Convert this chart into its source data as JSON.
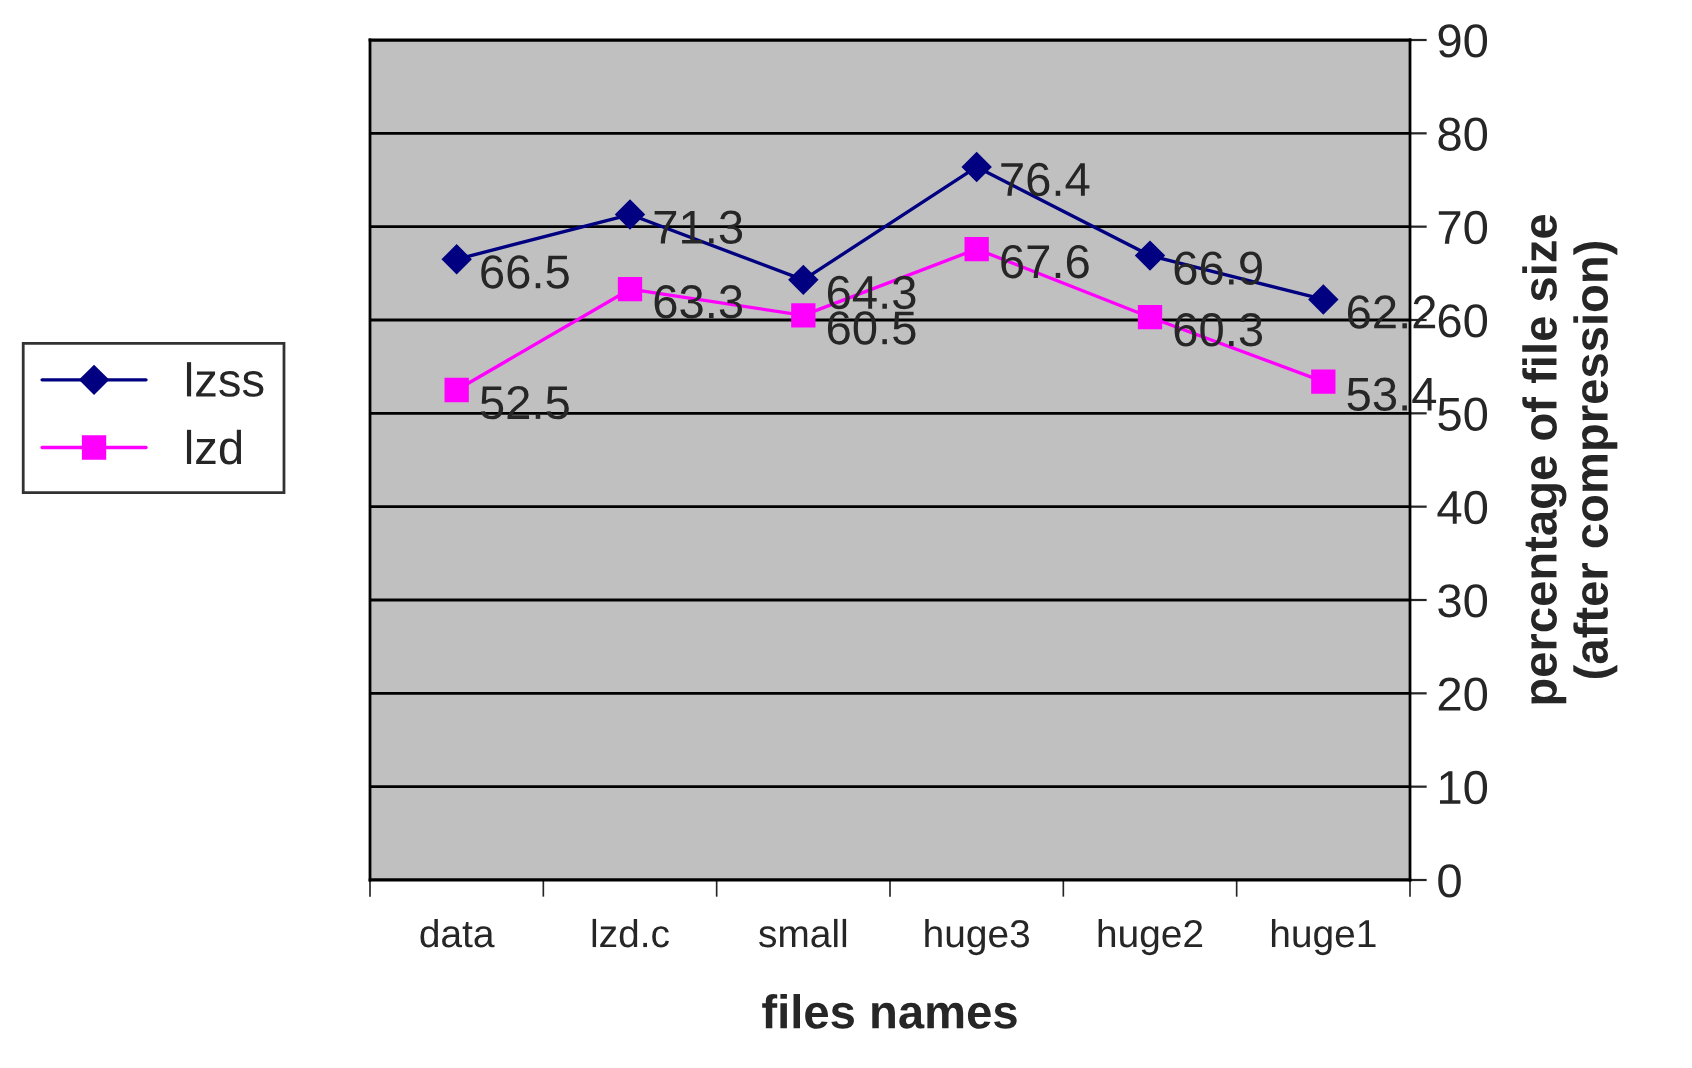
{
  "chart_data": {
    "type": "line",
    "xlabel": "files names",
    "ylabel": "percentage of file size\n(after compression)",
    "categories": [
      "data",
      "lzd.c",
      "small",
      "huge3",
      "huge2",
      "huge1"
    ],
    "series": [
      {
        "name": "lzss",
        "color": "#000080",
        "marker": "diamond",
        "values": [
          66.5,
          71.3,
          64.3,
          76.4,
          66.9,
          62.2
        ]
      },
      {
        "name": "lzd",
        "color": "#ff00ff",
        "marker": "square",
        "values": [
          52.5,
          63.3,
          60.5,
          67.6,
          60.3,
          53.4
        ]
      }
    ],
    "ylim": [
      0,
      90
    ],
    "yticks": [
      0,
      10,
      20,
      30,
      40,
      50,
      60,
      70,
      80,
      90
    ],
    "grid": "y",
    "legend": "left",
    "data_labels": true
  }
}
